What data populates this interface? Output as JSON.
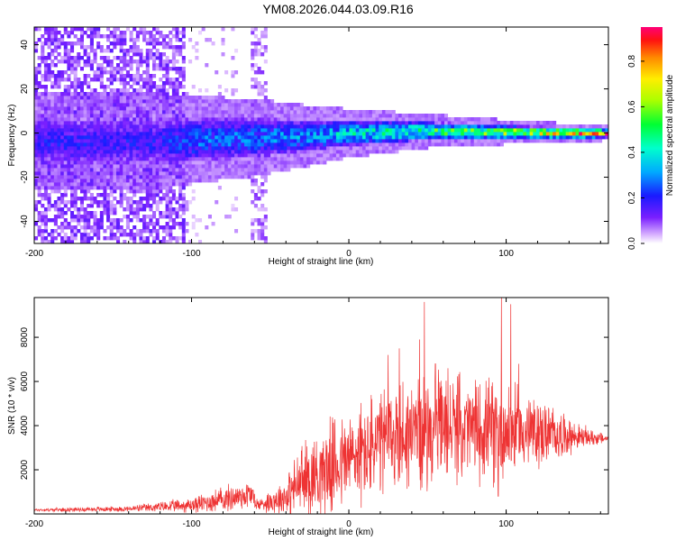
{
  "chart_data": [
    {
      "type": "heatmap",
      "title": "YM08.2026.044.03.09.R16",
      "xlabel": "Height of straight line (km)",
      "ylabel": "Frequency (Hz)",
      "xlim": [
        -200,
        165
      ],
      "ylim": [
        -50,
        48
      ],
      "x_ticks": [
        -200,
        -100,
        0,
        100
      ],
      "y_ticks": [
        -40,
        -20,
        0,
        20,
        40
      ],
      "x_tick_labels": [
        "-200",
        "-100",
        "0",
        "100"
      ],
      "y_tick_labels": [
        "-40",
        "-20",
        "0",
        "20",
        "40"
      ],
      "colorbar": {
        "label": "Normalized spectral amplitude",
        "range": [
          0,
          0.95
        ],
        "ticks": [
          0.0,
          0.2,
          0.4,
          0.6,
          0.8
        ],
        "tick_labels": [
          "0.0",
          "0.2",
          "0.4",
          "0.6",
          "0.8"
        ]
      },
      "band": {
        "description_points": [
          {
            "x": -120,
            "center_hz": -4,
            "halfwidth_hz": 10,
            "level": 0.22
          },
          {
            "x": -100,
            "center_hz": -3,
            "halfwidth_hz": 9,
            "level": 0.3
          },
          {
            "x": -60,
            "center_hz": -2,
            "halfwidth_hz": 8,
            "level": 0.32
          },
          {
            "x": -20,
            "center_hz": -1,
            "halfwidth_hz": 6,
            "level": 0.36
          },
          {
            "x": 0,
            "center_hz": 0,
            "halfwidth_hz": 5,
            "level": 0.45
          },
          {
            "x": 50,
            "center_hz": 1,
            "halfwidth_hz": 3.5,
            "level": 0.55
          },
          {
            "x": 100,
            "center_hz": 0.5,
            "halfwidth_hz": 2.5,
            "level": 0.7
          },
          {
            "x": 140,
            "center_hz": 0,
            "halfwidth_hz": 2,
            "level": 0.85
          },
          {
            "x": 165,
            "center_hz": 0,
            "halfwidth_hz": 1.5,
            "level": 0.95
          }
        ],
        "noise_region_x": [
          -200,
          -105
        ],
        "noise_column_x": [
          -62,
          -52
        ]
      }
    },
    {
      "type": "line",
      "xlabel": "Height of straight line (km)",
      "ylabel": "SNR (10 * v/v)",
      "xlim": [
        -200,
        165
      ],
      "ylim": [
        0,
        9800
      ],
      "x_ticks": [
        -200,
        -100,
        0,
        100
      ],
      "y_ticks": [
        2000,
        4000,
        6000,
        8000
      ],
      "x_tick_labels": [
        "-200",
        "-100",
        "0",
        "100"
      ],
      "y_tick_labels": [
        "2000",
        "4000",
        "6000",
        "8000"
      ],
      "line_color": "#ee3333",
      "envelope": [
        {
          "x": -200,
          "base": 180,
          "amp": 80
        },
        {
          "x": -140,
          "base": 230,
          "amp": 150
        },
        {
          "x": -100,
          "base": 400,
          "amp": 400
        },
        {
          "x": -80,
          "base": 650,
          "amp": 700
        },
        {
          "x": -62,
          "base": 900,
          "amp": 800
        },
        {
          "x": -58,
          "base": 400,
          "amp": 300
        },
        {
          "x": -40,
          "base": 800,
          "amp": 1000
        },
        {
          "x": -30,
          "base": 1500,
          "amp": 2000
        },
        {
          "x": -10,
          "base": 2200,
          "amp": 2500
        },
        {
          "x": 10,
          "base": 2800,
          "amp": 2800
        },
        {
          "x": 30,
          "base": 3500,
          "amp": 3000
        },
        {
          "x": 60,
          "base": 3900,
          "amp": 2800
        },
        {
          "x": 100,
          "base": 3800,
          "amp": 2600
        },
        {
          "x": 130,
          "base": 3600,
          "amp": 1500
        },
        {
          "x": 145,
          "base": 3500,
          "amp": 700
        },
        {
          "x": 165,
          "base": 3400,
          "amp": 200
        }
      ],
      "spikes": [
        {
          "x": 25,
          "value": 7200
        },
        {
          "x": 32,
          "value": 7500
        },
        {
          "x": 40,
          "value": 5600
        },
        {
          "x": 45,
          "value": 7900
        },
        {
          "x": 48,
          "value": 9600
        },
        {
          "x": 55,
          "value": 6800
        },
        {
          "x": 63,
          "value": 6600
        },
        {
          "x": 92,
          "value": 7500
        },
        {
          "x": 97,
          "value": 9800
        },
        {
          "x": 103,
          "value": 9500
        },
        {
          "x": 108,
          "value": 6800
        }
      ],
      "dips": [
        {
          "x": 92,
          "value": 1200
        },
        {
          "x": 95,
          "value": 800
        },
        {
          "x": 98,
          "value": 1600
        }
      ]
    }
  ]
}
